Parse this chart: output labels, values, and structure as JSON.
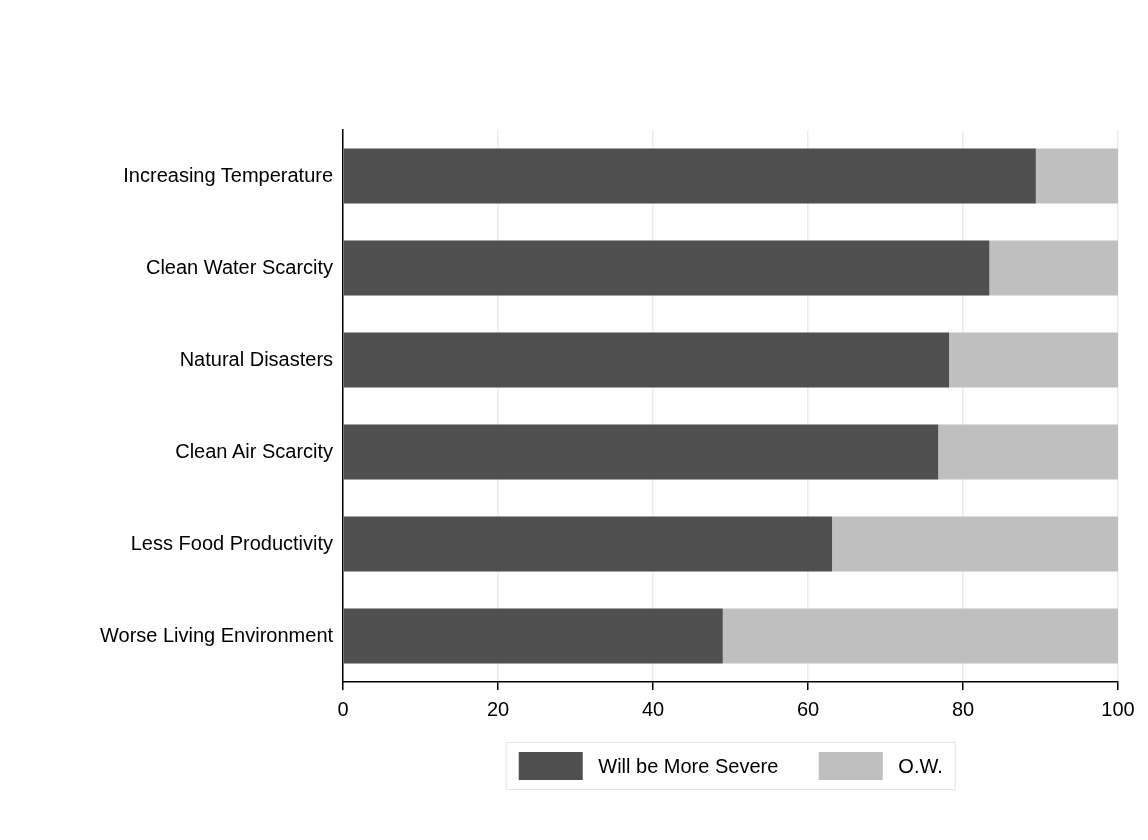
{
  "chart_data": {
    "type": "bar",
    "orientation": "horizontal",
    "stacked": true,
    "categories": [
      "Increasing Temperature",
      "Clean Water Scarcity",
      "Natural Disasters",
      "Clean Air Scarcity",
      "Less Food Productivity",
      "Worse Living Environment"
    ],
    "series": [
      {
        "name": "Will be More Severe",
        "color": "#4f4f4f",
        "values": [
          89.4,
          83.4,
          78.2,
          76.8,
          63.1,
          49.0
        ]
      },
      {
        "name": "O.W.",
        "color": "#bfbfbf",
        "values": [
          10.6,
          16.6,
          21.8,
          23.2,
          36.9,
          51.0
        ]
      }
    ],
    "xlim": [
      0,
      100
    ],
    "xticks": [
      0,
      20,
      40,
      60,
      80,
      100
    ],
    "grid": "x",
    "legend": "bottom"
  }
}
